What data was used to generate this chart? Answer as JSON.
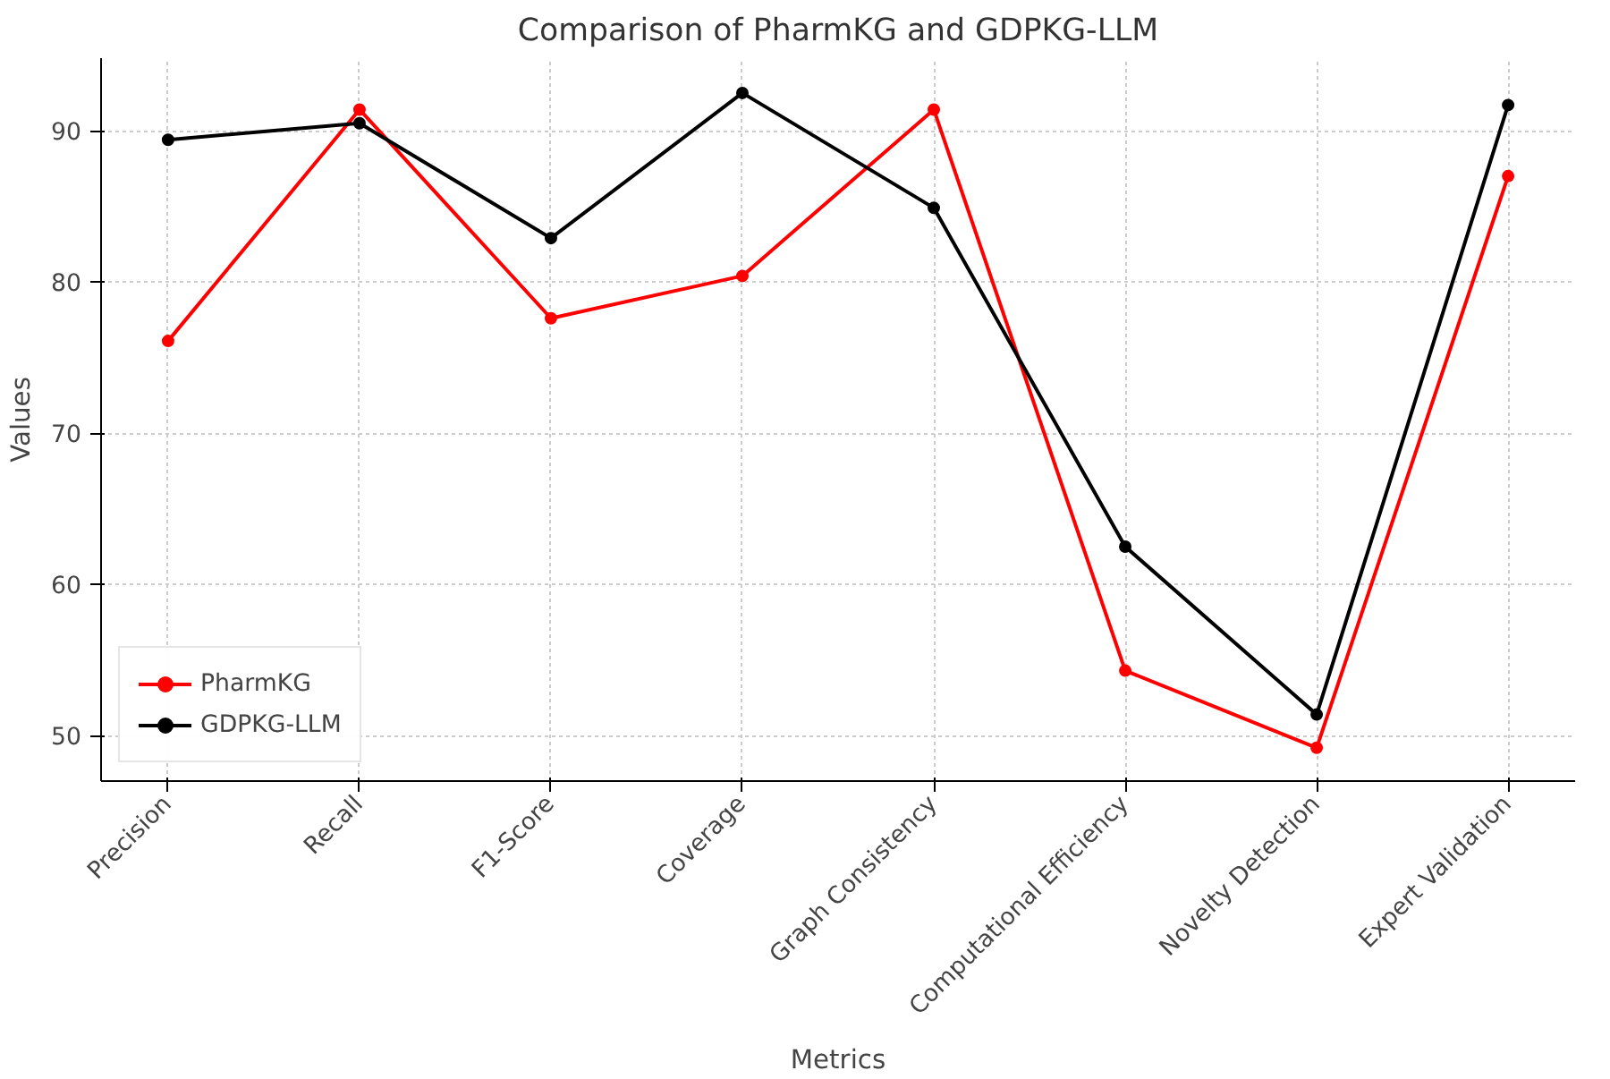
{
  "chart_data": {
    "type": "line",
    "title": "Comparison of PharmKG and GDPKG-LLM",
    "xlabel": "Metrics",
    "ylabel": "Values",
    "categories": [
      "Precision",
      "Recall",
      "F1-Score",
      "Coverage",
      "Graph Consistency",
      "Computational Efficiency",
      "Novelty Detection",
      "Expert Validation"
    ],
    "series": [
      {
        "name": "PharmKG",
        "color": "#ff0000",
        "values": [
          76.1,
          91.4,
          77.6,
          80.4,
          91.4,
          54.3,
          49.2,
          87.0
        ]
      },
      {
        "name": "GDPKG-LLM",
        "color": "#000000",
        "values": [
          89.4,
          90.5,
          82.9,
          92.5,
          84.9,
          62.5,
          51.4,
          91.7
        ]
      }
    ],
    "ylim": [
      47.0,
      94.8
    ],
    "yticks": [
      50,
      60,
      70,
      80,
      90
    ],
    "grid": true,
    "legend": "bottom left",
    "marker": "circle",
    "line_style": "solid"
  }
}
